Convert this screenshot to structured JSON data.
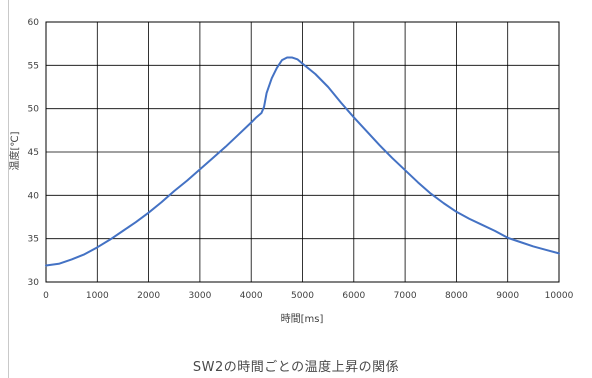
{
  "caption": "SW2の時間ごとの温度上昇の関係",
  "colors": {
    "series": "#4472c4",
    "grid": "#000000",
    "axis_text": "#404040"
  },
  "chart_data": {
    "type": "line",
    "title": "",
    "xlabel": "時間[ms]",
    "ylabel": "温度[℃]",
    "xlim": [
      0,
      10000
    ],
    "ylim": [
      30,
      60
    ],
    "xticks": [
      0,
      1000,
      2000,
      3000,
      4000,
      5000,
      6000,
      7000,
      8000,
      9000,
      10000
    ],
    "yticks": [
      30,
      35,
      40,
      45,
      50,
      55,
      60
    ],
    "grid": true,
    "legend": "none",
    "series": [
      {
        "x": [
          0,
          250,
          500,
          750,
          1000,
          1250,
          1500,
          1750,
          2000,
          2250,
          2500,
          2750,
          3000,
          3250,
          3500,
          3750,
          4000,
          4100,
          4200,
          4250,
          4300,
          4400,
          4500,
          4600,
          4700,
          4800,
          4900,
          5000,
          5250,
          5500,
          5750,
          6000,
          6250,
          6500,
          6750,
          7000,
          7250,
          7500,
          7750,
          8000,
          8250,
          8500,
          8750,
          9000,
          9250,
          9500,
          9750,
          10000
        ],
        "y": [
          31.9,
          32.1,
          32.6,
          33.2,
          34.0,
          34.9,
          35.9,
          36.9,
          38.0,
          39.2,
          40.5,
          41.7,
          43.0,
          44.3,
          45.6,
          47.0,
          48.4,
          49.0,
          49.5,
          50.2,
          51.8,
          53.5,
          54.7,
          55.6,
          55.9,
          55.9,
          55.7,
          55.2,
          54.0,
          52.5,
          50.7,
          49.0,
          47.4,
          45.8,
          44.3,
          42.9,
          41.5,
          40.2,
          39.1,
          38.1,
          37.3,
          36.6,
          35.9,
          35.1,
          34.6,
          34.1,
          33.7,
          33.3
        ]
      }
    ]
  }
}
